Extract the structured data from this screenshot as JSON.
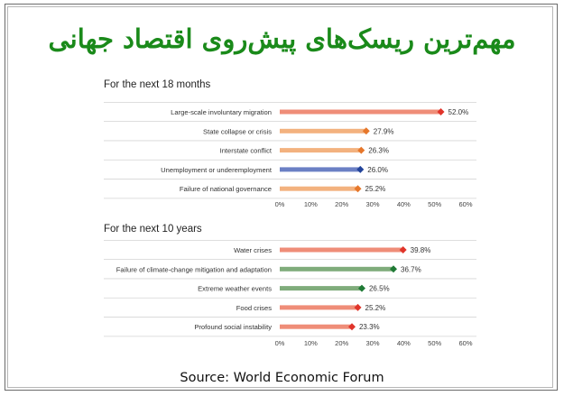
{
  "title": "مهم‌ترین ریسک‌های پیش‌روی اقتصاد جهانی",
  "source": "Source: World Economic Forum",
  "chart_data": [
    {
      "type": "bar",
      "subtitle": "For the next 18 months",
      "categories": [
        "Large-scale involuntary migration",
        "State collapse or crisis",
        "Interstate conflict",
        "Unemployment or underemployment",
        "Failure of national governance"
      ],
      "values": [
        52.0,
        27.9,
        26.3,
        26.0,
        25.2
      ],
      "value_labels": [
        "52.0%",
        "27.9%",
        "26.3%",
        "26.0%",
        "25.2%"
      ],
      "bar_colors": [
        "#ef8d78",
        "#f3b27f",
        "#f3b27f",
        "#6b80c4",
        "#f3b27f"
      ],
      "marker_colors": [
        "#e0342a",
        "#e6772b",
        "#e6772b",
        "#23449a",
        "#e6772b"
      ],
      "xlim": [
        0,
        60
      ],
      "xticks": [
        "0%",
        "10%",
        "20%",
        "30%",
        "40%",
        "50%",
        "60%"
      ]
    },
    {
      "type": "bar",
      "subtitle": "For the next 10 years",
      "categories": [
        "Water crises",
        "Failure of climate-change mitigation and adaptation",
        "Extreme weather events",
        "Food crises",
        "Profound social instability"
      ],
      "values": [
        39.8,
        36.7,
        26.5,
        25.2,
        23.3
      ],
      "value_labels": [
        "39.8%",
        "36.7%",
        "26.5%",
        "25.2%",
        "23.3%"
      ],
      "bar_colors": [
        "#ef8d78",
        "#7fac7b",
        "#7fac7b",
        "#ef8d78",
        "#ef8d78"
      ],
      "marker_colors": [
        "#e0342a",
        "#1f7a35",
        "#1f7a35",
        "#e0342a",
        "#e0342a"
      ],
      "xlim": [
        0,
        60
      ],
      "xticks": [
        "0%",
        "10%",
        "20%",
        "30%",
        "40%",
        "50%",
        "60%"
      ]
    }
  ]
}
